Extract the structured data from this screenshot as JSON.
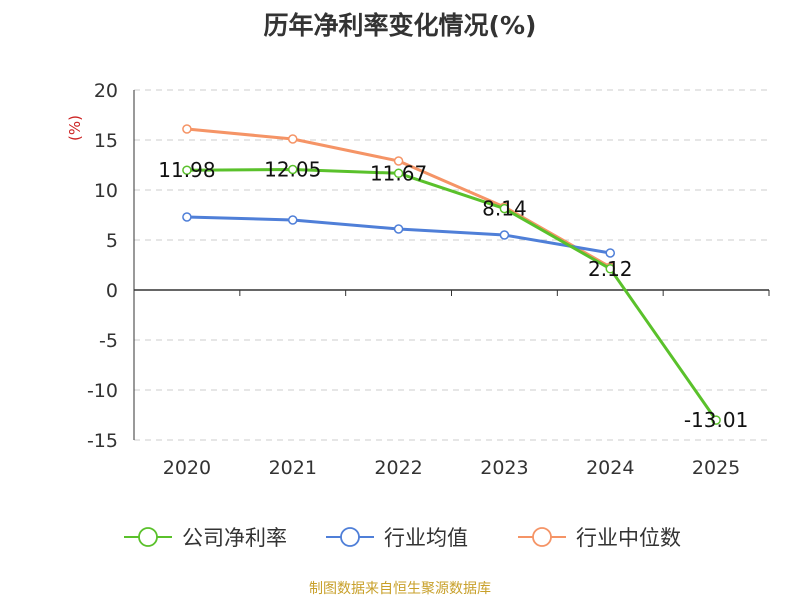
{
  "title": "历年净利率变化情况(%)",
  "source_note": "制图数据来自恒生聚源数据库",
  "chart_data": {
    "type": "line",
    "title": "历年净利率变化情况(%)",
    "ylabel": "(%)",
    "xlabel": "",
    "categories": [
      "2020",
      "2021",
      "2022",
      "2023",
      "2024",
      "2025"
    ],
    "ylim": [
      -15,
      20
    ],
    "yticks": [
      20,
      15,
      10,
      5,
      0,
      -5,
      -10,
      -15
    ],
    "grid": true,
    "legend_position": "bottom",
    "series": [
      {
        "name": "公司净利率",
        "color": "#5ac12b",
        "values": [
          11.98,
          12.05,
          11.67,
          8.14,
          2.12,
          -13.01
        ],
        "labels": [
          "11.98",
          "12.05",
          "11.67",
          "8.14",
          "2.12",
          "-13.01"
        ]
      },
      {
        "name": "行业均值",
        "color": "#4f7fd8",
        "values": [
          7.3,
          7.0,
          6.1,
          5.5,
          3.7,
          null
        ]
      },
      {
        "name": "行业中位数",
        "color": "#f59466",
        "values": [
          16.1,
          15.1,
          12.9,
          8.3,
          2.3,
          null
        ]
      }
    ]
  }
}
